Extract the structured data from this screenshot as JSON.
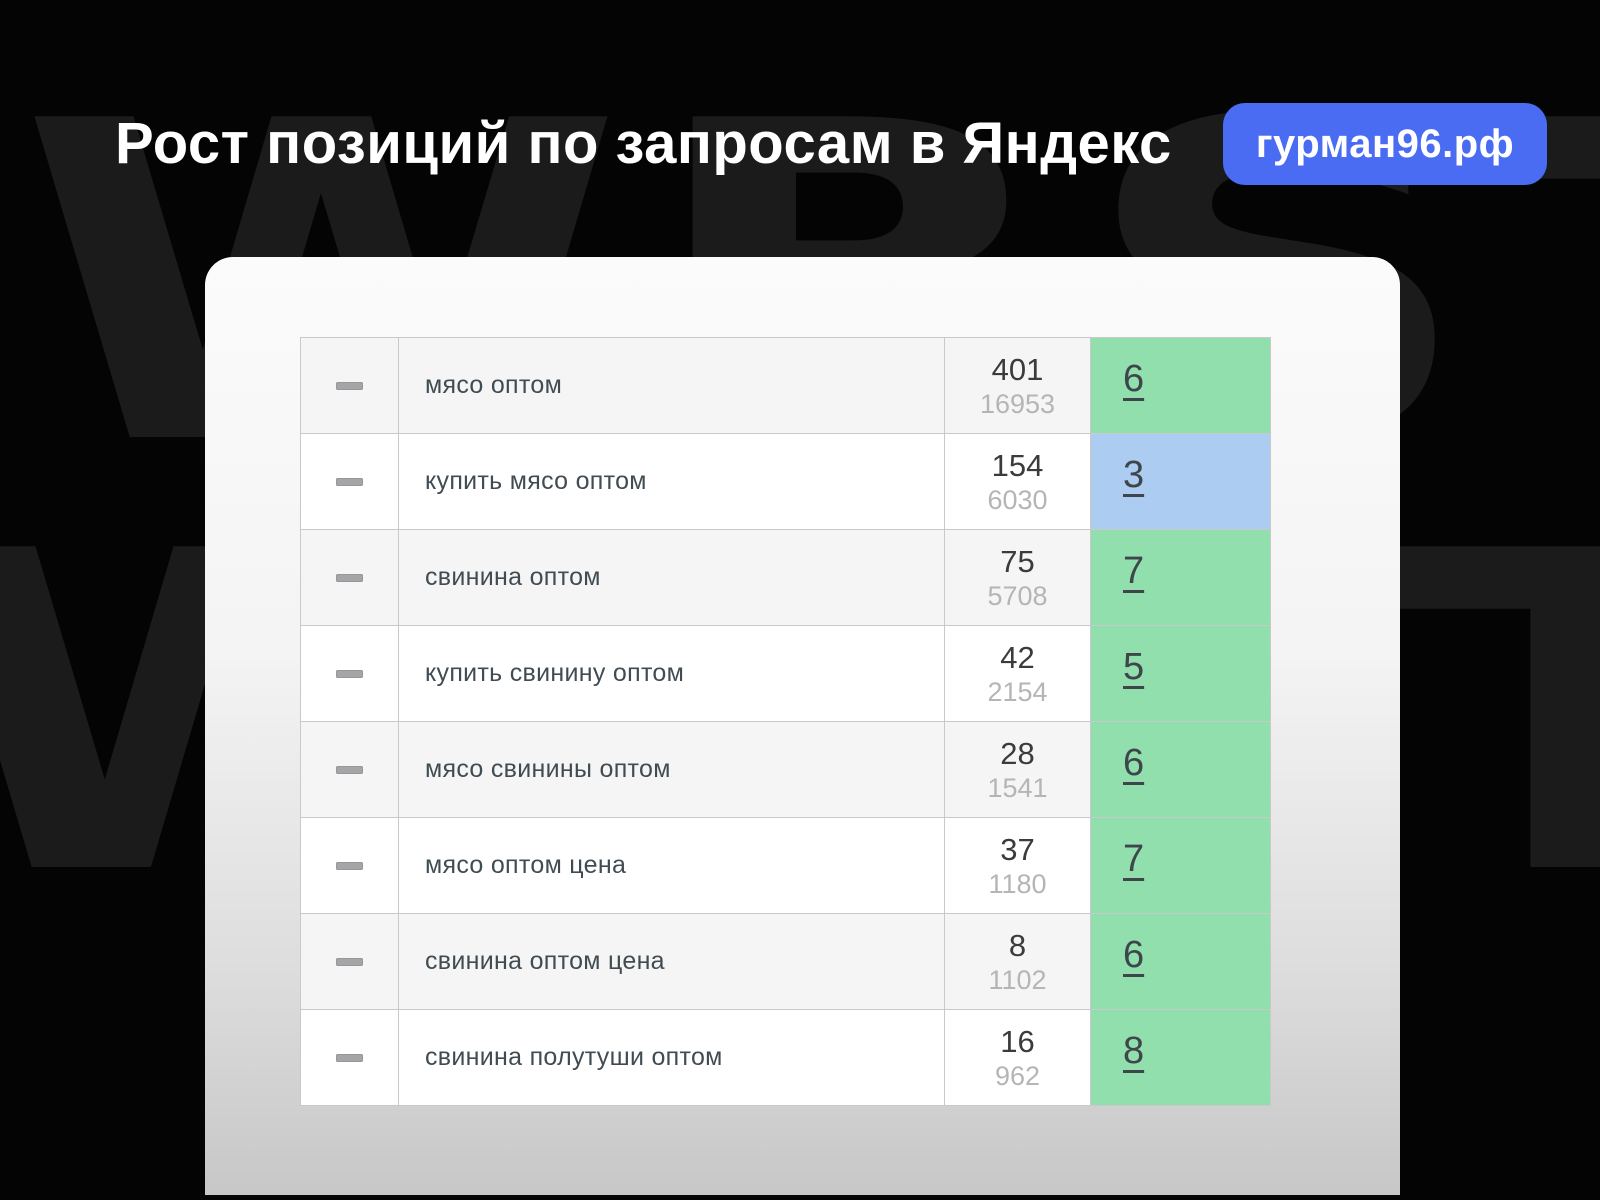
{
  "watermark": {
    "text": "WBSTR"
  },
  "header": {
    "title": "Рост позиций по запросам в Яндекс",
    "badge": "гурман96.рф"
  },
  "table": {
    "rows": [
      {
        "query": "мясо оптом",
        "clicks": "401",
        "impressions": "16953",
        "position": "6",
        "highlight": "green"
      },
      {
        "query": "купить мясо оптом",
        "clicks": "154",
        "impressions": "6030",
        "position": "3",
        "highlight": "blue"
      },
      {
        "query": "свинина оптом",
        "clicks": "75",
        "impressions": "5708",
        "position": "7",
        "highlight": "green"
      },
      {
        "query": "купить свинину оптом",
        "clicks": "42",
        "impressions": "2154",
        "position": "5",
        "highlight": "green"
      },
      {
        "query": "мясо свинины оптом",
        "clicks": "28",
        "impressions": "1541",
        "position": "6",
        "highlight": "green"
      },
      {
        "query": "мясо оптом цена",
        "clicks": "37",
        "impressions": "1180",
        "position": "7",
        "highlight": "green"
      },
      {
        "query": "свинина оптом цена",
        "clicks": "8",
        "impressions": "1102",
        "position": "6",
        "highlight": "green"
      },
      {
        "query": "свинина полутуши оптом",
        "clicks": "16",
        "impressions": "962",
        "position": "8",
        "highlight": "green"
      }
    ]
  },
  "colors": {
    "badge_blue": "#4a6cf3",
    "position_green": "#90dfad",
    "position_blue": "#accdf1",
    "background": "#040404"
  }
}
